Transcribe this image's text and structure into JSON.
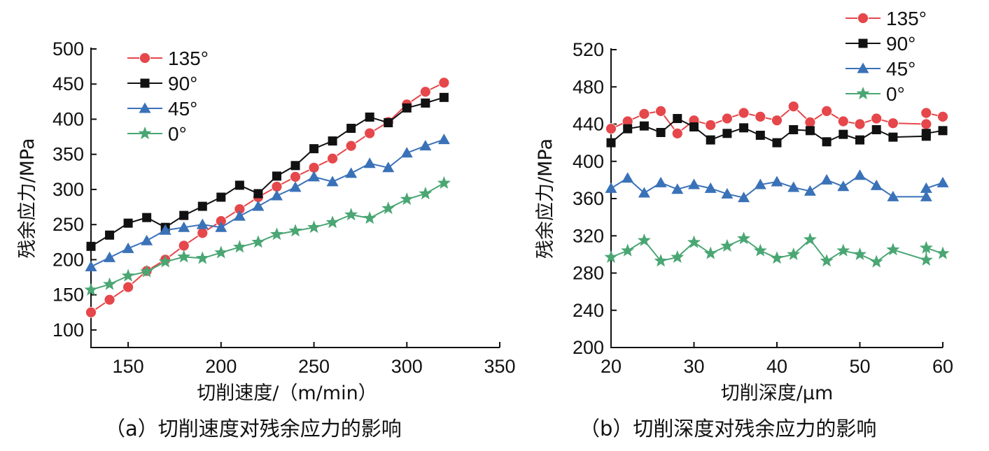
{
  "chart_data": [
    {
      "type": "line",
      "caption": "（a）切削速度对残余应力的影响",
      "xlabel": "切削速度/（m/min）",
      "ylabel": "残余应力/MPa",
      "xlim": [
        130,
        350
      ],
      "ylim": [
        75,
        500
      ],
      "xticks": [
        150,
        200,
        250,
        300,
        350
      ],
      "yticks": [
        100,
        150,
        200,
        250,
        300,
        350,
        400,
        450,
        500
      ],
      "grid": false,
      "legend_position": "top-left",
      "x": [
        130,
        140,
        150,
        160,
        170,
        180,
        190,
        200,
        210,
        220,
        230,
        240,
        250,
        260,
        270,
        280,
        290,
        300,
        310,
        320
      ],
      "series": [
        {
          "name": "135°",
          "color": "#e5474b",
          "marker": "circle",
          "values": [
            125,
            143,
            161,
            184,
            200,
            220,
            238,
            255,
            272,
            289,
            304,
            318,
            331,
            344,
            362,
            380,
            396,
            421,
            439,
            452
          ]
        },
        {
          "name": "90°",
          "color": "#111111",
          "marker": "square",
          "values": [
            219,
            235,
            252,
            260,
            246,
            263,
            276,
            289,
            306,
            294,
            319,
            334,
            358,
            369,
            387,
            403,
            395,
            416,
            423,
            431
          ]
        },
        {
          "name": "45°",
          "color": "#3a72b8",
          "marker": "triangle",
          "values": [
            190,
            203,
            216,
            227,
            242,
            246,
            250,
            246,
            262,
            276,
            291,
            303,
            318,
            311,
            323,
            337,
            331,
            352,
            362,
            371
          ]
        },
        {
          "name": "0°",
          "color": "#4aa673",
          "marker": "star",
          "values": [
            157,
            165,
            177,
            183,
            197,
            204,
            202,
            210,
            218,
            225,
            236,
            241,
            246,
            253,
            264,
            259,
            273,
            286,
            294,
            309
          ]
        }
      ]
    },
    {
      "type": "line",
      "caption": "（b）切削深度对残余应力的影响",
      "xlabel": "切削深度/μm",
      "ylabel": "残余应力/MPa",
      "xlim": [
        20,
        60
      ],
      "ylim": [
        200,
        520
      ],
      "xticks": [
        20,
        30,
        40,
        50,
        60
      ],
      "yticks": [
        200,
        240,
        280,
        320,
        360,
        400,
        440,
        480,
        520
      ],
      "grid": false,
      "legend_position": "top-right",
      "x": [
        20,
        22,
        24,
        26,
        28,
        30,
        32,
        34,
        36,
        38,
        40,
        42,
        44,
        46,
        48,
        50,
        52,
        54,
        58,
        60
      ],
      "series": [
        {
          "name": "135°",
          "color": "#e5474b",
          "marker": "circle",
          "x": [
            20,
            22,
            24,
            26,
            28,
            30,
            32,
            34,
            36,
            38,
            40,
            42,
            44,
            46,
            48,
            50,
            52,
            54,
            58,
            58,
            60
          ],
          "values": [
            435,
            443,
            451,
            454,
            430,
            444,
            439,
            446,
            452,
            448,
            444,
            459,
            442,
            454,
            443,
            440,
            446,
            441,
            440,
            452,
            448
          ]
        },
        {
          "name": "90°",
          "color": "#111111",
          "marker": "square",
          "x": [
            20,
            22,
            24,
            26,
            28,
            30,
            32,
            34,
            36,
            38,
            40,
            42,
            44,
            46,
            48,
            50,
            52,
            54,
            58,
            58,
            60
          ],
          "values": [
            420,
            435,
            438,
            431,
            446,
            437,
            423,
            430,
            436,
            428,
            420,
            434,
            433,
            421,
            429,
            423,
            434,
            426,
            427,
            430,
            433
          ]
        },
        {
          "name": "45°",
          "color": "#3a72b8",
          "marker": "triangle",
          "x": [
            20,
            22,
            24,
            26,
            28,
            30,
            32,
            34,
            36,
            38,
            40,
            42,
            44,
            46,
            48,
            50,
            52,
            54,
            58,
            58,
            60
          ],
          "values": [
            371,
            382,
            366,
            377,
            370,
            375,
            371,
            365,
            361,
            375,
            378,
            372,
            368,
            380,
            373,
            385,
            374,
            362,
            362,
            371,
            377
          ]
        },
        {
          "name": "0°",
          "color": "#4aa673",
          "marker": "star",
          "x": [
            20,
            22,
            24,
            26,
            28,
            30,
            32,
            34,
            36,
            38,
            40,
            42,
            44,
            46,
            48,
            50,
            52,
            54,
            58,
            58,
            60
          ],
          "values": [
            297,
            304,
            315,
            293,
            297,
            313,
            301,
            309,
            317,
            304,
            296,
            300,
            316,
            293,
            304,
            300,
            292,
            305,
            294,
            307,
            301
          ]
        }
      ]
    }
  ]
}
